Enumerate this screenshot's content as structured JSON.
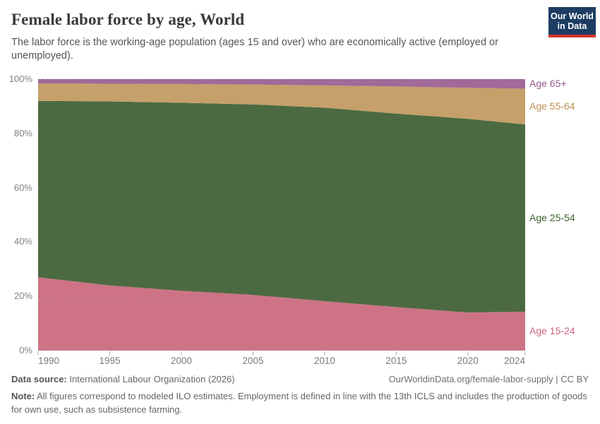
{
  "header": {
    "title": "Female labor force by age, World",
    "subtitle": "The labor force is the working-age population (ages 15 and over) who are economically active (employed or unemployed).",
    "logo": {
      "line1": "Our World",
      "line2": "in Data",
      "bg": "#1d3d63",
      "accent": "#d7352c"
    }
  },
  "chart_data": {
    "type": "area",
    "stacked": true,
    "title": "Female labor force by age, World",
    "x": [
      1990,
      1995,
      2000,
      2005,
      2010,
      2015,
      2020,
      2024
    ],
    "series": [
      {
        "name": "Age 15-24",
        "values": [
          27.0,
          24.0,
          22.0,
          20.5,
          18.2,
          16.0,
          14.0,
          14.3
        ],
        "color": "#ce7386",
        "label_color": "#d0657f"
      },
      {
        "name": "Age 25-54",
        "values": [
          65.0,
          67.8,
          69.3,
          70.2,
          71.3,
          71.3,
          71.4,
          69.0
        ],
        "color": "#4c6a41",
        "label_color": "#3c652f"
      },
      {
        "name": "Age 55-64",
        "values": [
          6.4,
          6.5,
          6.9,
          7.3,
          8.2,
          10.0,
          11.4,
          13.2
        ],
        "color": "#c5a06a",
        "label_color": "#bb9153"
      },
      {
        "name": "Age 65+",
        "values": [
          1.6,
          1.7,
          1.8,
          2.0,
          2.3,
          2.7,
          3.2,
          3.5
        ],
        "color": "#a16a99",
        "label_color": "#92588b"
      }
    ],
    "ylim": [
      0,
      100
    ],
    "y_ticks": [
      "0%",
      "20%",
      "40%",
      "60%",
      "80%",
      "100%"
    ],
    "x_ticks": [
      1990,
      1995,
      2000,
      2005,
      2010,
      2015,
      2020,
      2024
    ],
    "grid": "dashed-horizontal",
    "legend_position": "right-of-areas"
  },
  "footer": {
    "source_label": "Data source:",
    "source_value": "International Labour Organization (2026)",
    "link": "OurWorldinData.org/female-labor-supply | CC BY",
    "note_label": "Note:",
    "note_value": "All figures correspond to modeled ILO estimates. Employment is defined in line with the 13th ICLS and includes the production of goods for own use, such as subsistence farming."
  }
}
